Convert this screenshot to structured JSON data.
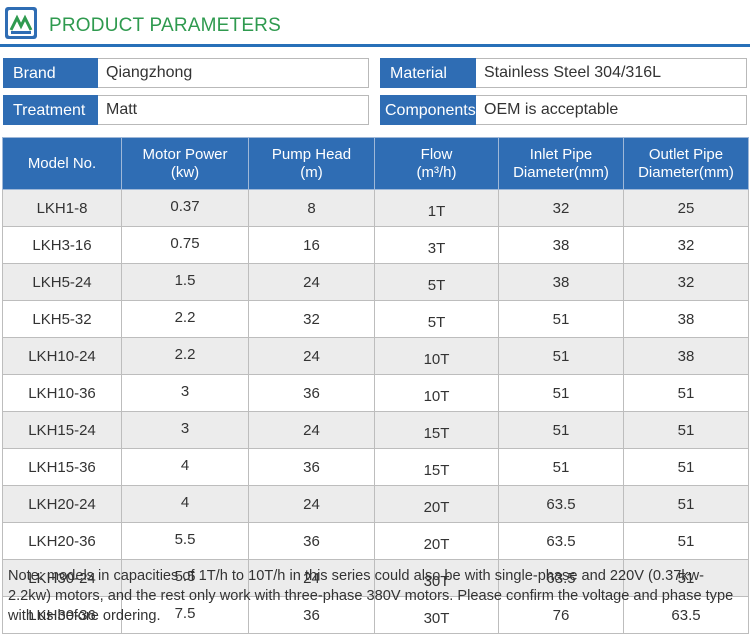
{
  "header": {
    "title": "PRODUCT PARAMETERS"
  },
  "params": {
    "brand_label": "Brand",
    "brand_value": "Qiangzhong",
    "material_label": "Material",
    "material_value": "Stainless Steel 304/316L",
    "treatment_label": "Treatment",
    "treatment_value": "Matt",
    "components_label": "Components",
    "components_value": "OEM is acceptable"
  },
  "table": {
    "headers": [
      [
        "Model No.",
        ""
      ],
      [
        "Motor Power",
        "(kw)"
      ],
      [
        "Pump Head",
        "(m)"
      ],
      [
        "Flow",
        "(m³/h)"
      ],
      [
        "Inlet Pipe",
        "Diameter(mm)"
      ],
      [
        "Outlet Pipe",
        "Diameter(mm)"
      ]
    ],
    "rows": [
      [
        "LKH1-8",
        "0.37",
        "8",
        "1T",
        "32",
        "25"
      ],
      [
        "LKH3-16",
        "0.75",
        "16",
        "3T",
        "38",
        "32"
      ],
      [
        "LKH5-24",
        "1.5",
        "24",
        "5T",
        "38",
        "32"
      ],
      [
        "LKH5-32",
        "2.2",
        "32",
        "5T",
        "51",
        "38"
      ],
      [
        "LKH10-24",
        "2.2",
        "24",
        "10T",
        "51",
        "38"
      ],
      [
        "LKH10-36",
        "3",
        "36",
        "10T",
        "51",
        "51"
      ],
      [
        "LKH15-24",
        "3",
        "24",
        "15T",
        "51",
        "51"
      ],
      [
        "LKH15-36",
        "4",
        "36",
        "15T",
        "51",
        "51"
      ],
      [
        "LKH20-24",
        "4",
        "24",
        "20T",
        "63.5",
        "51"
      ],
      [
        "LKH20-36",
        "5.5",
        "36",
        "20T",
        "63.5",
        "51"
      ],
      [
        "LKH30-24",
        "5.5",
        "24",
        "30T",
        "63.5",
        "51"
      ],
      [
        "LKH30-36",
        "7.5",
        "36",
        "30T",
        "76",
        "63.5"
      ]
    ]
  },
  "note": "Note: models in capacities of 1T/h to 10T/h in this series could also be with single-phase and 220V (0.37kw-2.2kw) motors, and the rest only work with three-phase 380V motors. Please confirm the voltage and phase type with us before ordering.",
  "colors": {
    "accent_blue": "#2f6db4",
    "title_green": "#2f9a4f",
    "rule_blue": "#2870b8"
  },
  "icons": {
    "logo": "brand-logo-icon"
  }
}
